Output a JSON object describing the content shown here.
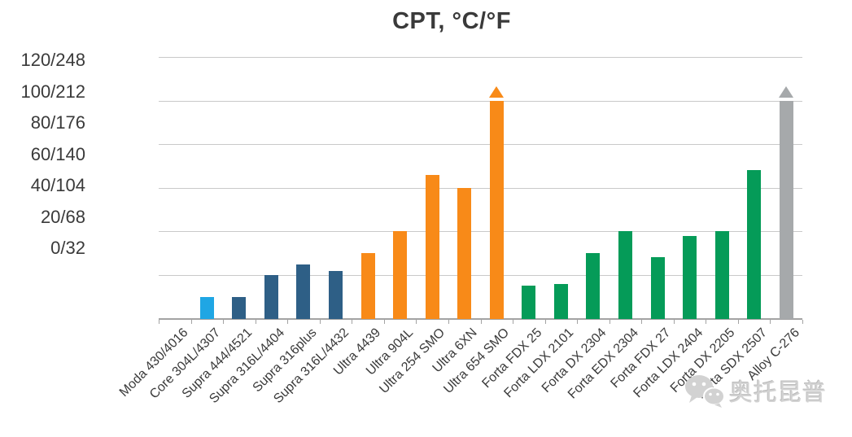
{
  "watermark": {
    "icon": "wechat-logo",
    "text": "奥托昆普"
  },
  "chart_data": {
    "type": "bar",
    "title": "CPT, °C/°F",
    "xlabel": "",
    "ylabel": "CPT, °C/°F",
    "ylim_c": [
      0,
      120
    ],
    "ytick_interval_c": 20,
    "grid": true,
    "legend_position": "none",
    "yticks": [
      {
        "label": "120/248",
        "c": 120,
        "f": 248
      },
      {
        "label": "100/212",
        "c": 100,
        "f": 212
      },
      {
        "label": "80/176",
        "c": 80,
        "f": 176
      },
      {
        "label": "60/140",
        "c": 60,
        "f": 140
      },
      {
        "label": "40/104",
        "c": 40,
        "f": 104
      },
      {
        "label": "20/68",
        "c": 20,
        "f": 68
      },
      {
        "label": "0/32",
        "c": 0,
        "f": 32
      }
    ],
    "family_colors": {
      "core": "#1FA6E4",
      "supra": "#2E5F86",
      "ultra": "#F88A18",
      "forta": "#059B58",
      "alloy": "#A6A9AB"
    },
    "gridline_color": "#c9c9c9",
    "axis_color": "#a3a3a3",
    "text_color": "#3a3a3a",
    "bars": [
      {
        "label": "Moda 430/4016",
        "family": "moda",
        "cpt_c": 0,
        "exceeds_scale": false
      },
      {
        "label": "Core 304L/4307",
        "family": "core",
        "cpt_c": 10,
        "exceeds_scale": false
      },
      {
        "label": "Supra 444/4521",
        "family": "supra",
        "cpt_c": 10,
        "exceeds_scale": false
      },
      {
        "label": "Supra 316L/4404",
        "family": "supra",
        "cpt_c": 20,
        "exceeds_scale": false
      },
      {
        "label": "Supra 316plus",
        "family": "supra",
        "cpt_c": 25,
        "exceeds_scale": false
      },
      {
        "label": "Supra 316L/4432",
        "family": "supra",
        "cpt_c": 22,
        "exceeds_scale": false
      },
      {
        "label": "Ultra 4439",
        "family": "ultra",
        "cpt_c": 30,
        "exceeds_scale": false
      },
      {
        "label": "Ultra 904L",
        "family": "ultra",
        "cpt_c": 40,
        "exceeds_scale": false
      },
      {
        "label": "Ultra 254 SMO",
        "family": "ultra",
        "cpt_c": 66,
        "exceeds_scale": false
      },
      {
        "label": "Ultra 6XN",
        "family": "ultra",
        "cpt_c": 60,
        "exceeds_scale": false
      },
      {
        "label": "Ultra 654 SMO",
        "family": "ultra",
        "cpt_c": 100,
        "exceeds_scale": true
      },
      {
        "label": "Forta FDX 25",
        "family": "forta",
        "cpt_c": 15,
        "exceeds_scale": false
      },
      {
        "label": "Forta LDX 2101",
        "family": "forta",
        "cpt_c": 16,
        "exceeds_scale": false
      },
      {
        "label": "Forta DX 2304",
        "family": "forta",
        "cpt_c": 30,
        "exceeds_scale": false
      },
      {
        "label": "Forta EDX 2304",
        "family": "forta",
        "cpt_c": 40,
        "exceeds_scale": false
      },
      {
        "label": "Forta FDX 27",
        "family": "forta",
        "cpt_c": 28,
        "exceeds_scale": false
      },
      {
        "label": "Forta LDX 2404",
        "family": "forta",
        "cpt_c": 38,
        "exceeds_scale": false
      },
      {
        "label": "Forta DX 2205",
        "family": "forta",
        "cpt_c": 40,
        "exceeds_scale": false
      },
      {
        "label": "Forta SDX 2507",
        "family": "forta",
        "cpt_c": 68,
        "exceeds_scale": false
      },
      {
        "label": "Alloy C-276",
        "family": "alloy",
        "cpt_c": 100,
        "exceeds_scale": true
      }
    ]
  }
}
